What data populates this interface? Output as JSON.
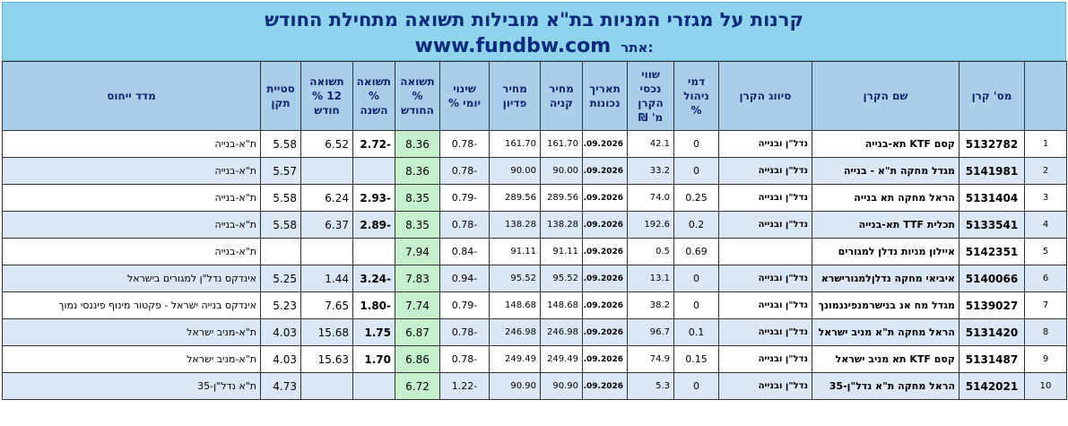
{
  "title": {
    "line1": "קרנות על מגזרי המניות בת\"א מובילות תשואה מתחילת החודש",
    "site_label": "אתר:",
    "site_url": "www.fundbw.com"
  },
  "columns": {
    "rownum": "",
    "fund_id": "מס' קרן",
    "name": "שם הקרן",
    "classification": "סיווג הקרן",
    "fee": "דמי ניהול %",
    "assets": "שווי נכסי הקרן מ' ₪",
    "date": "תאריך נכונות",
    "buy_price": "מחיר קניה",
    "redeem_price": "מחיר פדיון",
    "daily_change": "שינוי יומי %",
    "mtd": "תשואה % החודש",
    "ytd": "תשואה % השנה",
    "ret12": "תשואה 12 % חודש",
    "std": "סטיית תקן",
    "index": "מדד ייחוס"
  },
  "rows": [
    {
      "n": "1",
      "id": "5132782",
      "name": "קסם KTF תא-בנייה",
      "cls": "נדל\"ן ובנייה",
      "fee": "0",
      "assets": "42.1",
      "date": "07.09.2026",
      "buy": "161.70",
      "redeem": "161.70",
      "daily": "-0.78",
      "mtd": "8.36",
      "ytd": "-2.72",
      "r12": "6.52",
      "std": "5.58",
      "index": "ת\"א-בנייה"
    },
    {
      "n": "2",
      "id": "5141981",
      "name": "מגדל מחקה ת\"א - בנייה",
      "cls": "נדל\"ן ובנייה",
      "fee": "0",
      "assets": "33.2",
      "date": "07.09.2026",
      "buy": "90.00",
      "redeem": "90.00",
      "daily": "-0.78",
      "mtd": "8.36",
      "ytd": "",
      "r12": "",
      "std": "5.57",
      "index": "ת\"א-בנייה"
    },
    {
      "n": "3",
      "id": "5131404",
      "name": "הראל מחקה תא בנייה",
      "cls": "נדל\"ן ובנייה",
      "fee": "0.25",
      "assets": "74.0",
      "date": "07.09.2026",
      "buy": "289.56",
      "redeem": "289.56",
      "daily": "-0.79",
      "mtd": "8.35",
      "ytd": "-2.93",
      "r12": "6.24",
      "std": "5.58",
      "index": "ת\"א-בנייה"
    },
    {
      "n": "4",
      "id": "5133541",
      "name": "תכלית TTF תא-בנייה",
      "cls": "נדל\"ן ובנייה",
      "fee": "0.2",
      "assets": "192.6",
      "date": "07.09.2026",
      "buy": "138.28",
      "redeem": "138.28",
      "daily": "-0.78",
      "mtd": "8.35",
      "ytd": "-2.89",
      "r12": "6.37",
      "std": "5.58",
      "index": "ת\"א-בנייה"
    },
    {
      "n": "5",
      "id": "5142351",
      "name": "איילון מניות נדלן למגורים",
      "cls": "",
      "fee": "0.69",
      "assets": "0.5",
      "date": "07.09.2026",
      "buy": "91.11",
      "redeem": "91.11",
      "daily": "-0.84",
      "mtd": "7.94",
      "ytd": "",
      "r12": "",
      "std": "",
      "index": "ת\"א-בנייה"
    },
    {
      "n": "6",
      "id": "5140066",
      "name": "איביאי מחקה נדלןלמגורישרא",
      "cls": "נדל\"ן ובנייה",
      "fee": "0",
      "assets": "13.1",
      "date": "07.09.2026",
      "buy": "95.52",
      "redeem": "95.52",
      "daily": "-0.94",
      "mtd": "7.83",
      "ytd": "-3.24",
      "r12": "1.44",
      "std": "5.25",
      "index": "אינדקס נדל\"ן למגורים בישראל"
    },
    {
      "n": "7",
      "id": "5139027",
      "name": "מגדל מח אנ בנישרמנפיננמונך",
      "cls": "נדל\"ן ובנייה",
      "fee": "0",
      "assets": "38.2",
      "date": "07.09.2026",
      "buy": "148.68",
      "redeem": "148.68",
      "daily": "-0.79",
      "mtd": "7.74",
      "ytd": "-1.80",
      "r12": "7.65",
      "std": "5.23",
      "index": "אינדקס בנייה ישראל - פקטור מינוף פיננסי נמוך"
    },
    {
      "n": "8",
      "id": "5131420",
      "name": "הראל מחקה ת\"א מניב ישראל",
      "cls": "נדל\"ן ובנייה",
      "fee": "0.1",
      "assets": "96.7",
      "date": "07.09.2026",
      "buy": "246.98",
      "redeem": "246.98",
      "daily": "-0.78",
      "mtd": "6.87",
      "ytd": "1.75",
      "r12": "15.68",
      "std": "4.03",
      "index": "ת\"א-מניב ישראל"
    },
    {
      "n": "9",
      "id": "5131487",
      "name": "קסם KTF תא מניב ישראל",
      "cls": "נדל\"ן ובנייה",
      "fee": "0.15",
      "assets": "74.9",
      "date": "07.09.2026",
      "buy": "249.49",
      "redeem": "249.49",
      "daily": "-0.78",
      "mtd": "6.86",
      "ytd": "1.70",
      "r12": "15.63",
      "std": "4.03",
      "index": "ת\"א-מניב ישראל"
    },
    {
      "n": "10",
      "id": "5142021",
      "name": "הראל מחקה ת\"א נדל\"ן-35",
      "cls": "נדל\"ן ובנייה",
      "fee": "0",
      "assets": "5.3",
      "date": "07.09.2026",
      "buy": "90.90",
      "redeem": "90.90",
      "daily": "-1.22",
      "mtd": "6.72",
      "ytd": "",
      "r12": "",
      "std": "4.73",
      "index": "ת\"א נדל\"ן-35"
    }
  ],
  "colors": {
    "title_bg": "#8fd3ef",
    "header_bg": "#a9cfea",
    "alt_row": "#dce7f6",
    "mtd_highlight": "#c6efce"
  }
}
